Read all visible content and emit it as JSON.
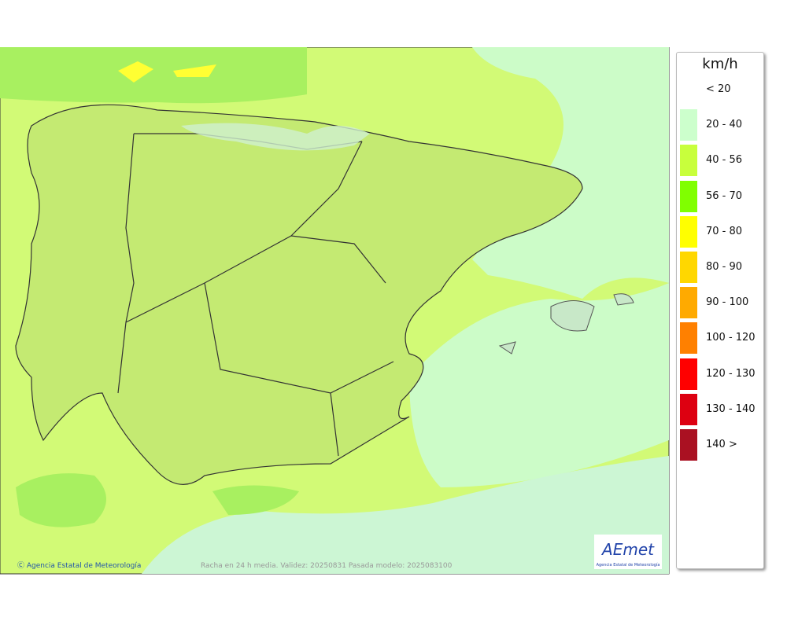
{
  "legend": {
    "unit": "km/h",
    "items": [
      {
        "label": "< 20",
        "color": "#ffffff"
      },
      {
        "label": "20 - 40",
        "color": "#ccffcc"
      },
      {
        "label": "40 - 56",
        "color": "#c8ff3c"
      },
      {
        "label": "56 - 70",
        "color": "#80ff00"
      },
      {
        "label": "70 - 80",
        "color": "#ffff00"
      },
      {
        "label": "80 - 90",
        "color": "#ffd700"
      },
      {
        "label": "90 - 100",
        "color": "#ffaa00"
      },
      {
        "label": "100 - 120",
        "color": "#ff8000"
      },
      {
        "label": "120 - 130",
        "color": "#ff0000"
      },
      {
        "label": "130 - 140",
        "color": "#dd0011"
      },
      {
        "label": "140 >",
        "color": "#aa1122"
      }
    ]
  },
  "credit": "Ⓒ Agencia Estatal de Meteorología",
  "footer": "Racha en 24 h media. Validez: 20250831 Pasada modelo: 2025083100",
  "logo": {
    "name": "AEmet",
    "subtitle": "Agencia Estatal de Meteorología"
  }
}
